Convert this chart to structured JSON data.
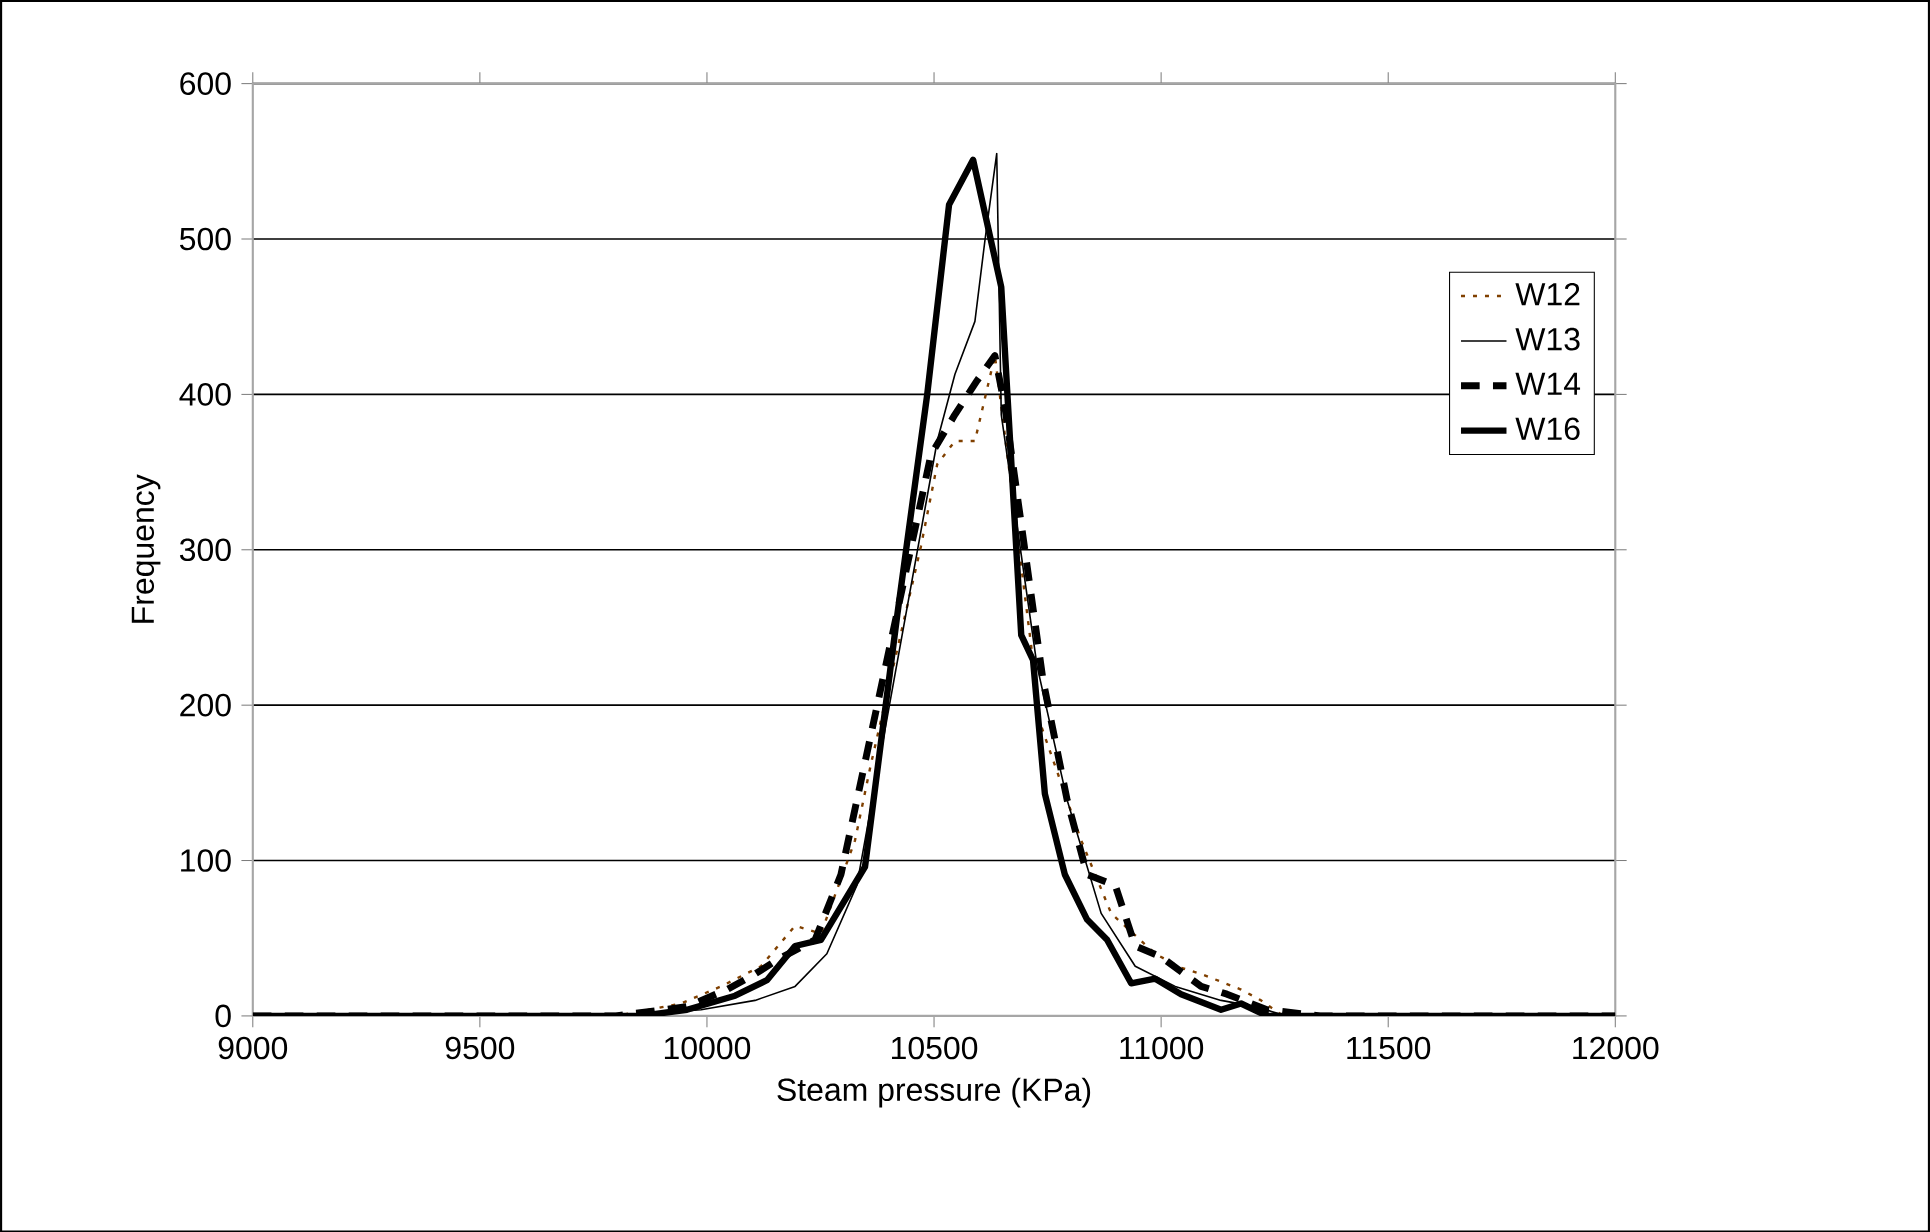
{
  "chart_data": {
    "type": "line",
    "xlabel": "Steam pressure (KPa)",
    "ylabel": "Frequency",
    "xlim": [
      9000,
      12000
    ],
    "xticks": [
      9000,
      9500,
      10000,
      10500,
      11000,
      11500,
      12000
    ],
    "ylim": [
      0,
      600
    ],
    "yticks": [
      0,
      100,
      200,
      300,
      400,
      500,
      600
    ],
    "grid": "y",
    "legend": "right",
    "marker": "none",
    "series": [
      {
        "name": "W12",
        "color": "#804000",
        "line_style": "dotted",
        "x": [
          9000,
          9800,
          9943,
          10031,
          10119,
          10194,
          10251,
          10326,
          10361,
          10471,
          10507,
          10546,
          10590,
          10634,
          10714,
          10727,
          10824,
          10890,
          10987,
          11044,
          11088,
          11176,
          11220,
          11264,
          11350,
          12000
        ],
        "values": [
          0,
          0,
          8,
          19,
          32,
          58,
          53,
          113,
          162,
          302,
          355,
          370,
          370,
          425,
          238,
          194,
          113,
          66,
          40,
          31,
          27,
          17,
          10,
          1,
          0,
          0
        ]
      },
      {
        "name": "W13",
        "color": "#000000",
        "line_style": "solid",
        "x": [
          9000,
          9800,
          9987,
          10106,
          10194,
          10264,
          10330,
          10507,
          10546,
          10590,
          10612,
          10638,
          10648,
          10727,
          10793,
          10868,
          10943,
          11031,
          11132,
          11207,
          11264,
          11350,
          12000
        ],
        "values": [
          0,
          0,
          4,
          10,
          19,
          40,
          84,
          370,
          413,
          447,
          499,
          555,
          387,
          225,
          139,
          66,
          32,
          19,
          10,
          6,
          1,
          0,
          0
        ]
      },
      {
        "name": "W14",
        "color": "#000000",
        "line_style": "dashed",
        "x": [
          9000,
          9800,
          9956,
          10044,
          10106,
          10154,
          10238,
          10295,
          10493,
          10546,
          10595,
          10634,
          10656,
          10740,
          10793,
          10837,
          10899,
          10943,
          11000,
          11088,
          11145,
          11233,
          11350,
          12000
        ],
        "values": [
          0,
          0,
          6,
          17,
          27,
          36,
          49,
          91,
          361,
          387,
          409,
          425,
          392,
          216,
          139,
          91,
          84,
          45,
          38,
          19,
          14,
          4,
          0,
          0
        ]
      },
      {
        "name": "W16",
        "color": "#000000",
        "line_style": "solid",
        "x": [
          9000,
          9800,
          9855,
          9956,
          10062,
          10132,
          10194,
          10251,
          10348,
          10419,
          10485,
          10533,
          10586,
          10648,
          10692,
          10718,
          10744,
          10788,
          10837,
          10881,
          10934,
          10987,
          11044,
          11132,
          11176,
          11233,
          12000
        ],
        "values": [
          0,
          0,
          0,
          4,
          13,
          23,
          45,
          49,
          96,
          258,
          400,
          522,
          551,
          469,
          245,
          229,
          143,
          91,
          62,
          49,
          21,
          24,
          14,
          4,
          8,
          0,
          0
        ]
      }
    ]
  }
}
